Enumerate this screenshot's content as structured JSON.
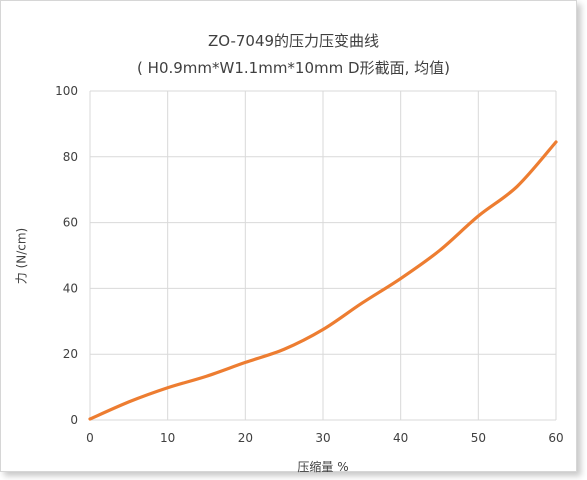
{
  "chart_data": {
    "type": "line",
    "title": "ZO-7049的压力压变曲线",
    "subtitle": "( H0.9mm*W1.1mm*10mm D形截面, 均值)",
    "xlabel": "压缩量 %",
    "ylabel": "力 (N/cm)",
    "xlim": [
      0,
      60
    ],
    "ylim": [
      0,
      100
    ],
    "xticks": [
      0,
      10,
      20,
      30,
      40,
      50,
      60
    ],
    "yticks": [
      0,
      20,
      40,
      60,
      80,
      100
    ],
    "grid": true,
    "legend": "none",
    "series": [
      {
        "color": "#ED7D31",
        "x": [
          0,
          5,
          10,
          15,
          20,
          25,
          30,
          35,
          40,
          45,
          50,
          55,
          60
        ],
        "y": [
          0.3,
          5.5,
          9.8,
          13.3,
          17.5,
          21.5,
          27.5,
          35.5,
          43.0,
          51.5,
          62.0,
          71.0,
          84.5
        ]
      }
    ]
  }
}
